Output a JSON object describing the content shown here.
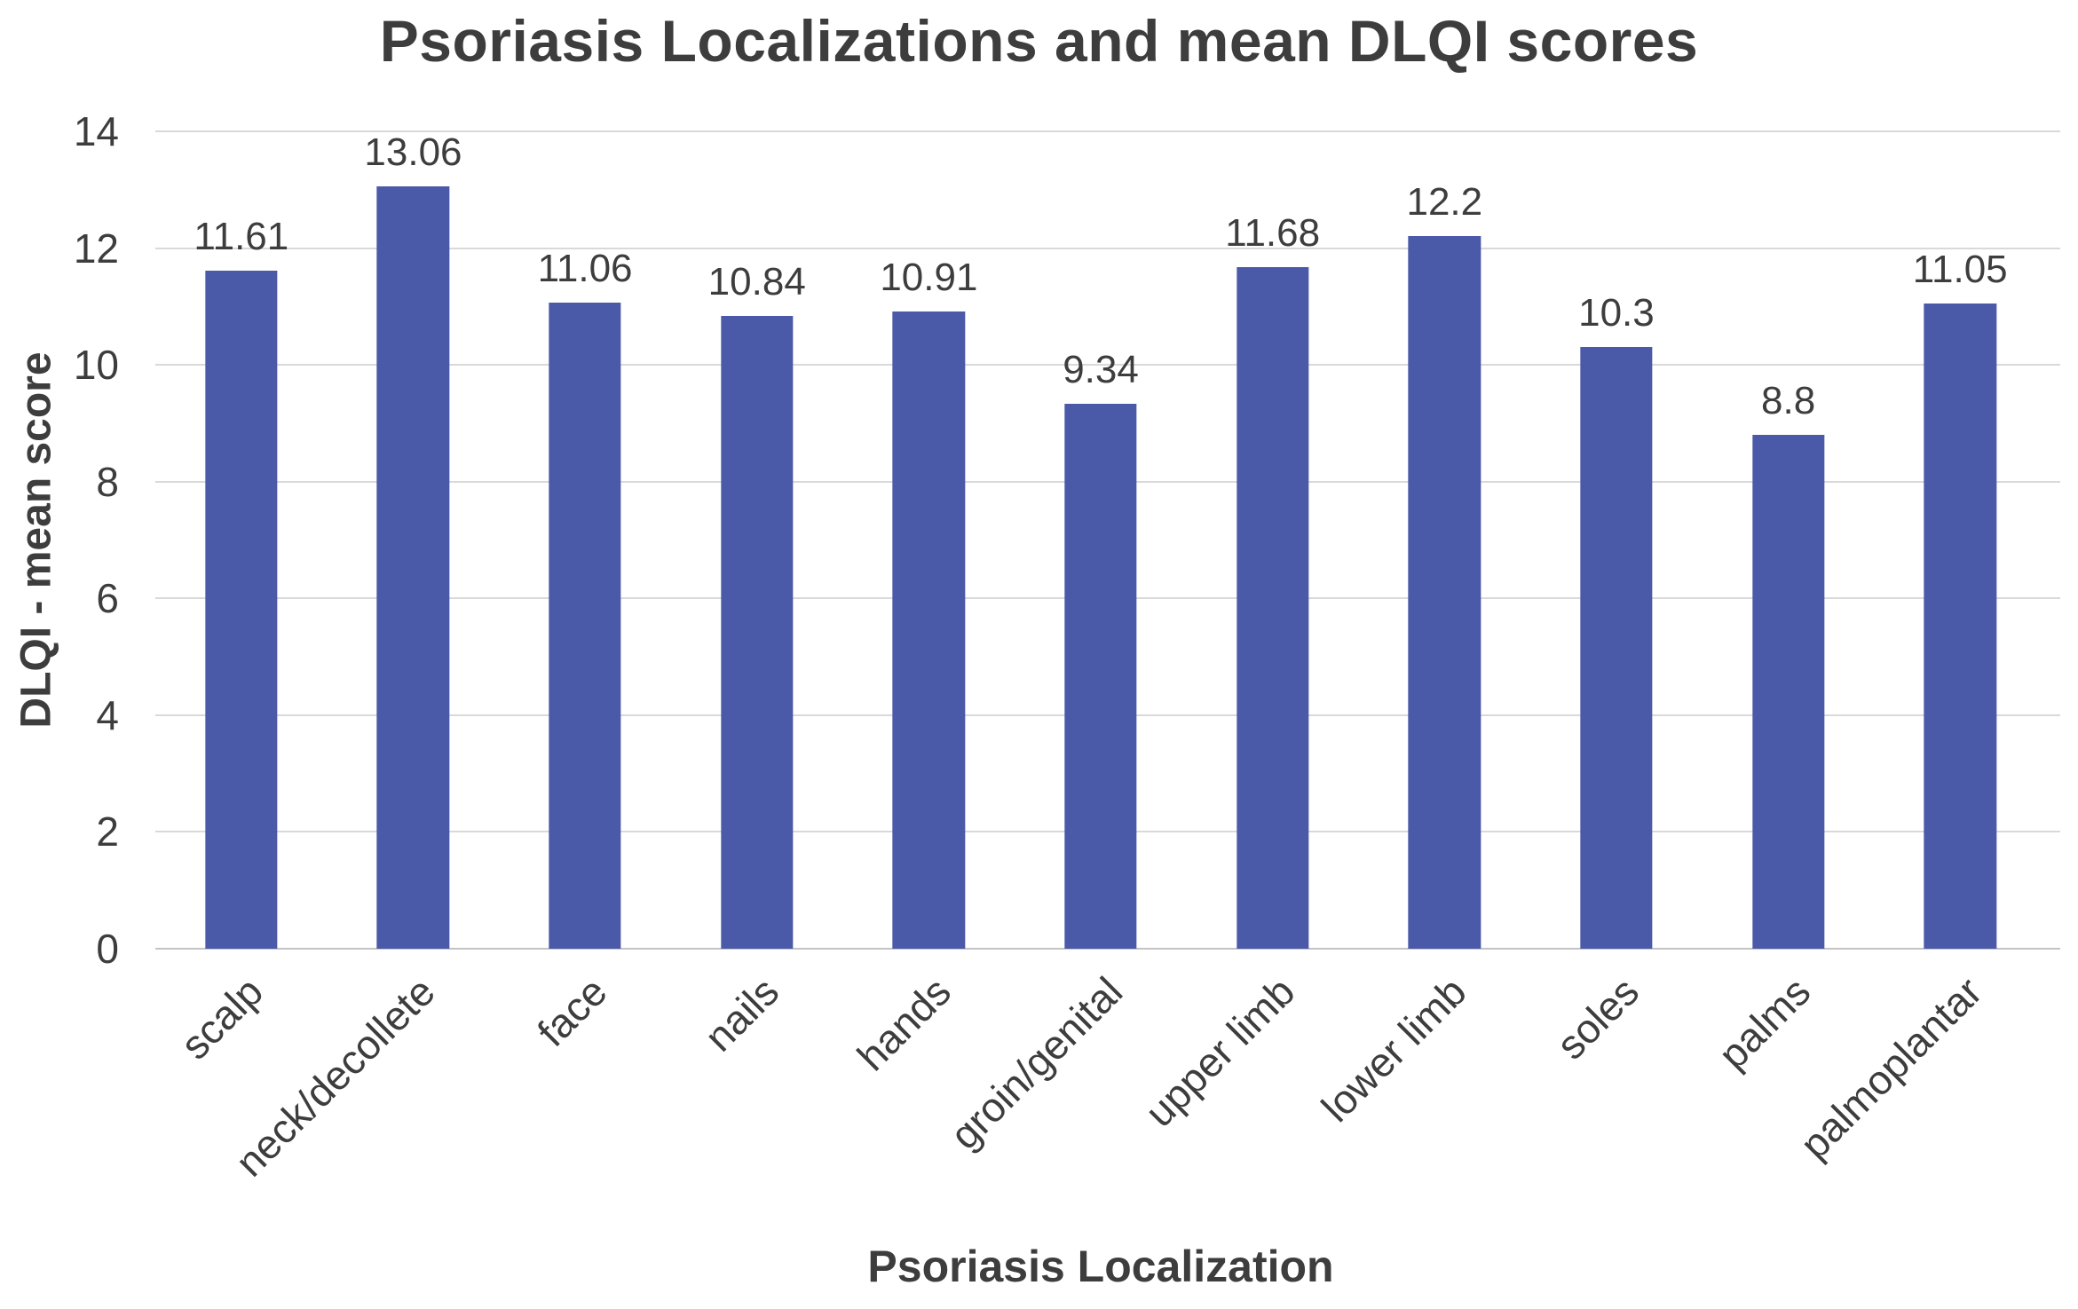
{
  "chart_data": {
    "type": "bar",
    "title": "Psoriasis Localizations and mean DLQI scores",
    "xlabel": "Psoriasis Localization",
    "ylabel": "DLQI - mean score",
    "categories": [
      "scalp",
      "neck/decollete",
      "face",
      "nails",
      "hands",
      "groin/genital",
      "upper limb",
      "lower limb",
      "soles",
      "palms",
      "palmoplantar"
    ],
    "values": [
      11.61,
      13.06,
      11.06,
      10.84,
      10.91,
      9.34,
      11.68,
      12.2,
      10.3,
      8.8,
      11.05
    ],
    "value_labels": [
      "11.61",
      "13.06",
      "11.06",
      "10.84",
      "10.91",
      "9.34",
      "11.68",
      "12.2",
      "10.3",
      "8.8",
      "11.05"
    ],
    "ylim": [
      0,
      14
    ],
    "yticks": [
      0,
      2,
      4,
      6,
      8,
      10,
      12,
      14
    ],
    "grid": "horizontal",
    "legend": "none",
    "bar_color": "#4a59a8",
    "gridline_color": "#d9d9d9",
    "text_color": "#3d3d3d"
  }
}
